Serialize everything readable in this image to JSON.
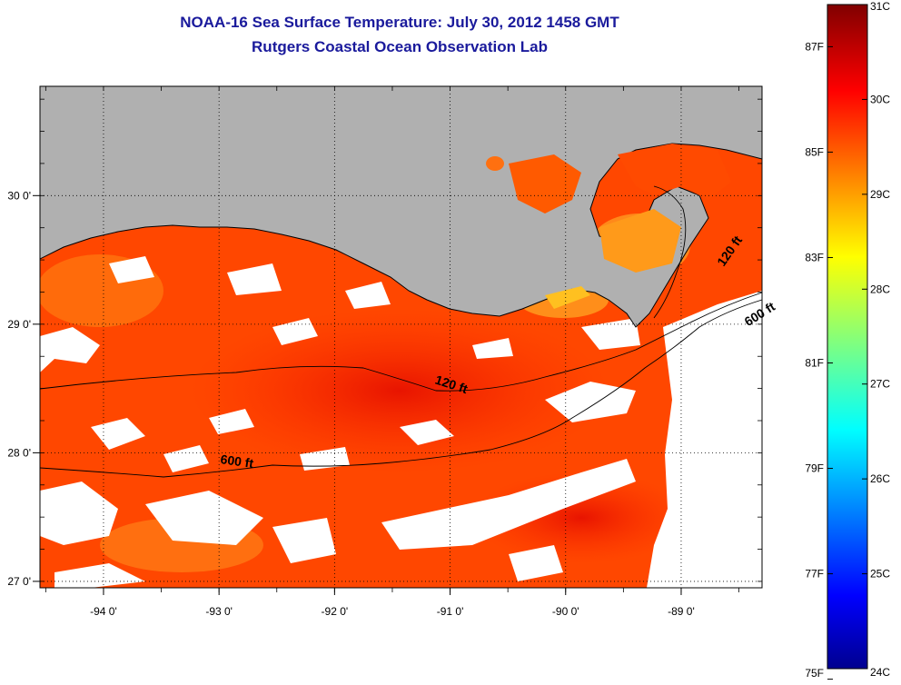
{
  "title": {
    "line1": "NOAA-16 Sea Surface Temperature:  July 30, 2012 1458 GMT",
    "line2": "Rutgers Coastal Ocean Observation Lab"
  },
  "map": {
    "lon_range": [
      -94.55,
      -88.3
    ],
    "lat_range": [
      26.95,
      30.85
    ],
    "lon_ticks": [
      {
        "value": -94,
        "label": "-94 0'"
      },
      {
        "value": -93,
        "label": "-93 0'"
      },
      {
        "value": -92,
        "label": "-92 0'"
      },
      {
        "value": -91,
        "label": "-91 0'"
      },
      {
        "value": -90,
        "label": "-90 0'"
      },
      {
        "value": -89,
        "label": "-89 0'"
      }
    ],
    "lat_ticks": [
      {
        "value": 30,
        "label": "30 0'"
      },
      {
        "value": 29,
        "label": "29 0'"
      },
      {
        "value": 28,
        "label": "28 0'"
      },
      {
        "value": 27,
        "label": "27 0'"
      }
    ],
    "contour_labels": [
      {
        "text": "120 ft",
        "lon": -91.0,
        "lat": 28.5,
        "rotate": 18
      },
      {
        "text": "600 ft",
        "lon": -92.85,
        "lat": 27.9,
        "rotate": 8
      },
      {
        "text": "120 ft",
        "lon": -88.55,
        "lat": 29.55,
        "rotate": -55
      },
      {
        "text": "600 ft",
        "lon": -88.3,
        "lat": 29.05,
        "rotate": -32
      }
    ],
    "colors": {
      "land": "#b0b0b0",
      "sst_warm": "#ff2a00",
      "sst_mid": "#ff6a00",
      "cloud": "#ffffff"
    }
  },
  "colorbar": {
    "celsius_range": [
      24,
      31
    ],
    "celsius_labels": [
      "31C",
      "30C",
      "29C",
      "28C",
      "27C",
      "26C",
      "25C",
      "24C"
    ],
    "fahrenheit_labels": [
      {
        "value": 87,
        "label": "87F"
      },
      {
        "value": 85,
        "label": "85F"
      },
      {
        "value": 83,
        "label": "83F"
      },
      {
        "value": 81,
        "label": "81F"
      },
      {
        "value": 79,
        "label": "79F"
      },
      {
        "value": 77,
        "label": "77F"
      },
      {
        "value": 75,
        "label": "75F"
      }
    ],
    "colormap": "jet"
  }
}
